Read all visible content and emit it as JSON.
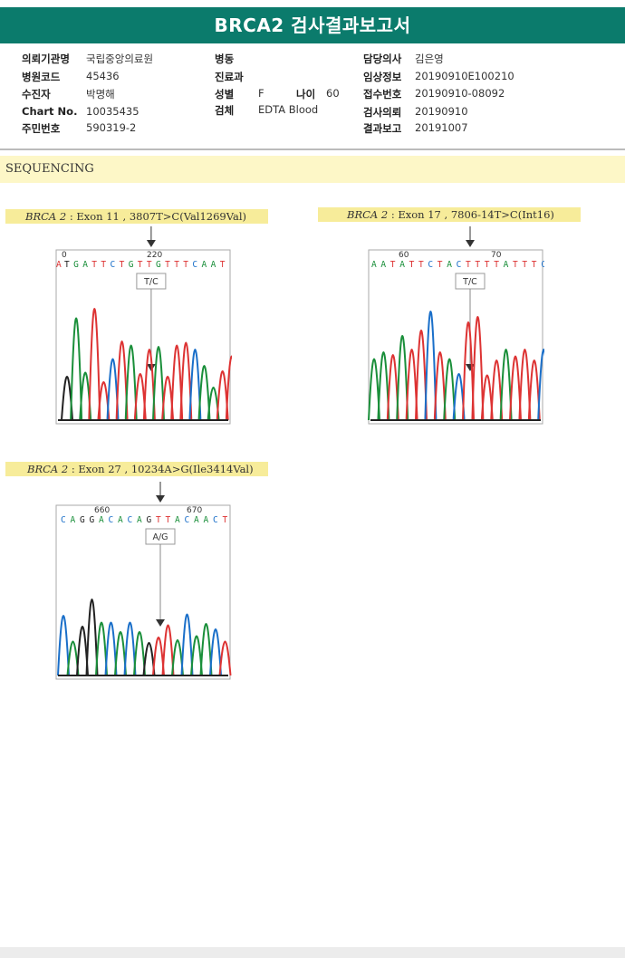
{
  "header": {
    "title": "BRCA2 검사결과보고서"
  },
  "patient_info": {
    "col1": [
      {
        "label": "의뢰기관명",
        "value": "국립중앙의료원"
      },
      {
        "label": "병원코드",
        "value": "45436"
      },
      {
        "label": "수진자",
        "value": "박명해"
      },
      {
        "label": "Chart No.",
        "value": "10035435"
      },
      {
        "label": "주민번호",
        "value": "590319-2"
      }
    ],
    "col2": [
      {
        "label": "병동",
        "value": ""
      },
      {
        "label": "진료과",
        "value": ""
      },
      {
        "label": "성별",
        "value": "F"
      },
      {
        "label": "검체",
        "value": "EDTA Blood"
      }
    ],
    "age": {
      "label": "나이",
      "value": "60"
    },
    "col3": [
      {
        "label": "담당의사",
        "value": "김은영"
      },
      {
        "label": "임상정보",
        "value": "20190910E100210"
      },
      {
        "label": "접수번호",
        "value": "20190910-08092"
      },
      {
        "label": "검사의뢰",
        "value": "20190910"
      },
      {
        "label": "결과보고",
        "value": "20191007"
      }
    ]
  },
  "section": {
    "title": "SEQUENCING"
  },
  "results": [
    {
      "gene": "BRCA 2",
      "detail": " : Exon 11 , 3807T>C(Val1269Val)",
      "zygosity": "T/C",
      "sequence": "TGATTCTGTTGTTTCAAT",
      "sequence_left_edge": "A",
      "position_labels": [
        "0",
        "220"
      ],
      "colors": [
        "#d33",
        "#222",
        "#1a8f3a",
        "#1a8f3a",
        "#d33",
        "#d33",
        "#1a6fc9",
        "#d33",
        "#1a8f3a",
        "#d33",
        "#d33",
        "#1a8f3a",
        "#d33",
        "#d33",
        "#d33",
        "#1a6fc9",
        "#1a8f3a",
        "#1a8f3a",
        "#d33"
      ]
    },
    {
      "gene": "BRCA 2",
      "detail": " : Exon 17 , 7806-14T>C(Int16)",
      "zygosity": "T/C",
      "sequence": "AATATTCTACTTTTATTTC",
      "position_labels": [
        "60",
        "70"
      ],
      "colors": [
        "#1a8f3a",
        "#1a8f3a",
        "#d33",
        "#1a8f3a",
        "#d33",
        "#d33",
        "#1a6fc9",
        "#d33",
        "#1a8f3a",
        "#1a6fc9",
        "#d33",
        "#d33",
        "#d33",
        "#d33",
        "#1a8f3a",
        "#d33",
        "#d33",
        "#d33",
        "#1a6fc9"
      ]
    },
    {
      "gene": "BRCA 2",
      "detail": " : Exon 27 , 10234A>G(Ile3414Val)",
      "zygosity": "A/G",
      "sequence": "CAGGACACAGTTACAACT",
      "position_labels": [
        "660",
        "670"
      ],
      "colors": [
        "#1a6fc9",
        "#1a8f3a",
        "#222",
        "#222",
        "#1a8f3a",
        "#1a6fc9",
        "#1a8f3a",
        "#1a6fc9",
        "#1a8f3a",
        "#222",
        "#d33",
        "#d33",
        "#1a8f3a",
        "#1a6fc9",
        "#1a8f3a",
        "#1a8f3a",
        "#1a6fc9",
        "#d33"
      ]
    }
  ]
}
